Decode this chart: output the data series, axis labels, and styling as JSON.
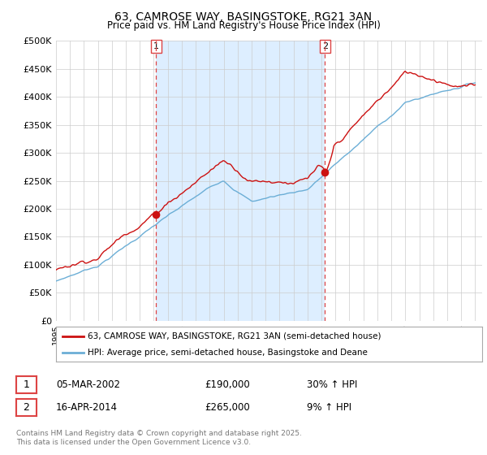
{
  "title": "63, CAMROSE WAY, BASINGSTOKE, RG21 3AN",
  "subtitle": "Price paid vs. HM Land Registry's House Price Index (HPI)",
  "ylim": [
    0,
    500000
  ],
  "yticks": [
    0,
    50000,
    100000,
    150000,
    200000,
    250000,
    300000,
    350000,
    400000,
    450000,
    500000
  ],
  "ytick_labels": [
    "£0",
    "£50K",
    "£100K",
    "£150K",
    "£200K",
    "£250K",
    "£300K",
    "£350K",
    "£400K",
    "£450K",
    "£500K"
  ],
  "hpi_color": "#6baed6",
  "price_color": "#cc1111",
  "shade_color": "#ddeeff",
  "transaction1_date": "05-MAR-2002",
  "transaction1_price": 190000,
  "transaction1_hpi": "30% ↑ HPI",
  "transaction2_date": "16-APR-2014",
  "transaction2_price": 265000,
  "transaction2_hpi": "9% ↑ HPI",
  "legend_label1": "63, CAMROSE WAY, BASINGSTOKE, RG21 3AN (semi-detached house)",
  "legend_label2": "HPI: Average price, semi-detached house, Basingstoke and Deane",
  "footnote": "Contains HM Land Registry data © Crown copyright and database right 2025.\nThis data is licensed under the Open Government Licence v3.0.",
  "background_color": "#ffffff",
  "plot_bg_color": "#ffffff",
  "grid_color": "#cccccc",
  "vline_color": "#dd4444"
}
